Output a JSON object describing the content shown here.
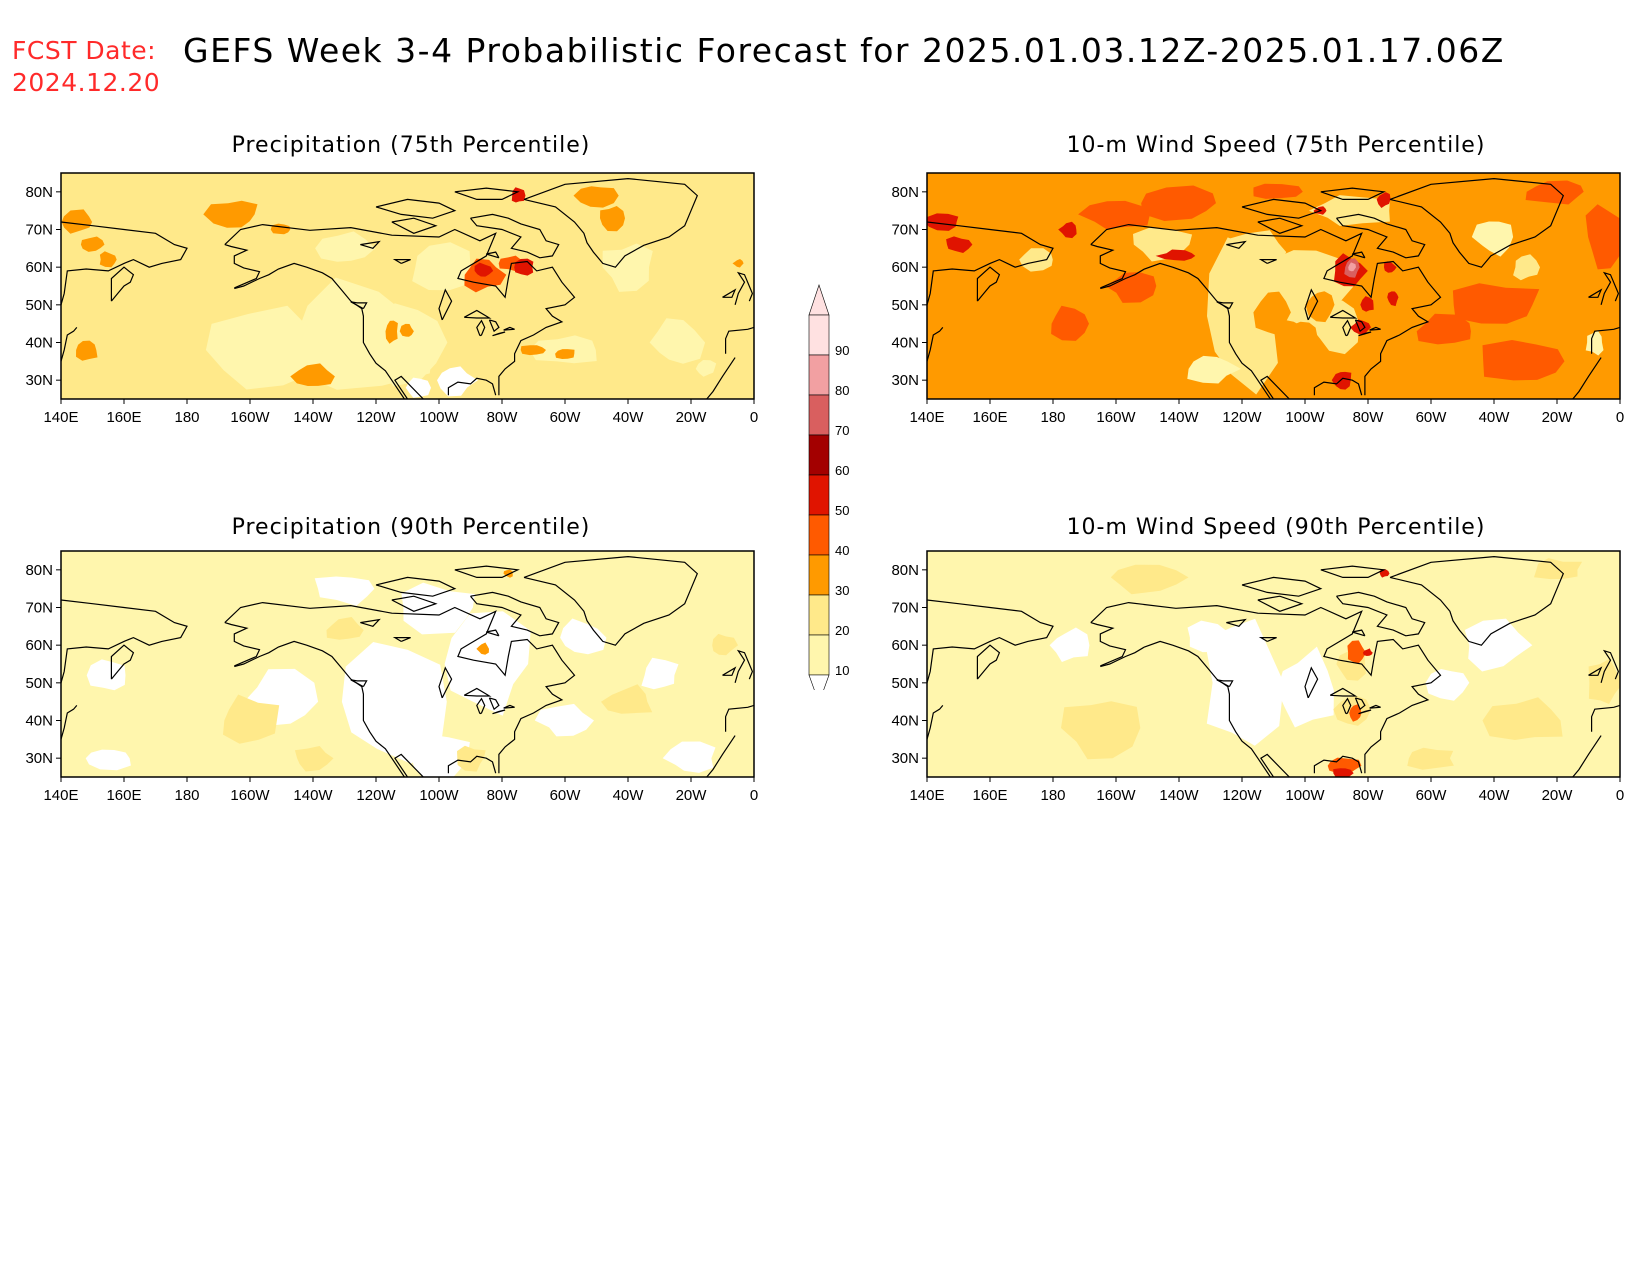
{
  "header": {
    "fcst_label": "FCST Date:",
    "fcst_date": "2024.12.20",
    "title": "GEFS Week 3-4 Probabilistic Forecast for 2025.01.03.12Z-2025.01.17.06Z"
  },
  "axis": {
    "lat_labels": [
      "80N",
      "70N",
      "60N",
      "50N",
      "40N",
      "30N"
    ],
    "lon_labels": [
      "140E",
      "160E",
      "180",
      "160W",
      "140W",
      "120W",
      "100W",
      "80W",
      "60W",
      "40W",
      "20W",
      "0"
    ]
  },
  "panels": [
    {
      "id": "precip-75",
      "title": "Precipitation (75th Percentile)",
      "background": "#ffe98a"
    },
    {
      "id": "wind-75",
      "title": "10-m Wind Speed (75th Percentile)",
      "background": "#ff9a00"
    },
    {
      "id": "precip-90",
      "title": "Precipitation (90th Percentile)",
      "background": "#fff6ad"
    },
    {
      "id": "wind-90",
      "title": "10-m Wind Speed (90th Percentile)",
      "background": "#fff6ad"
    }
  ],
  "colorbar": {
    "labels": [
      "90",
      "80",
      "70",
      "60",
      "50",
      "40",
      "30",
      "20",
      "10"
    ],
    "colors": [
      "#ffe1e1",
      "#f2a0a2",
      "#d95f5f",
      "#a30000",
      "#e01400",
      "#ff5a00",
      "#ff9a00",
      "#ffe98a",
      "#fff6ad"
    ]
  },
  "palette": {
    "white": "#ffffff",
    "c10": "#fff6ad",
    "c20": "#ffe98a",
    "c30": "#ff9a00",
    "c40": "#ff5a00",
    "c50": "#e01400",
    "c60": "#a30000",
    "c70": "#d95f5f",
    "c80": "#f2a0a2",
    "c90": "#ffe1e1"
  }
}
